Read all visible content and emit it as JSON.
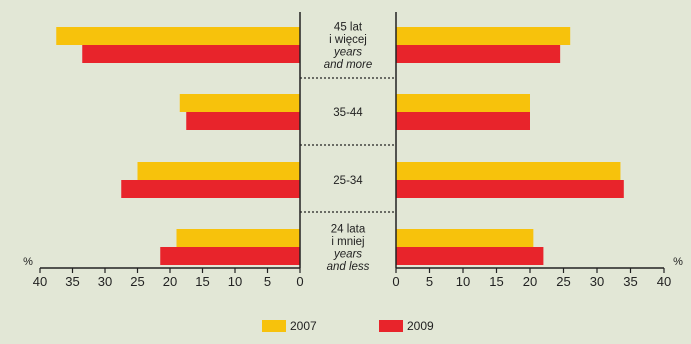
{
  "chart_data": {
    "type": "bar",
    "orientation": "horizontal-butterfly",
    "categories": [
      {
        "lines": [
          "45 lat",
          "i więcej"
        ],
        "lines_italic": [
          "years",
          "and more"
        ]
      },
      {
        "lines": [
          "35-44"
        ],
        "lines_italic": []
      },
      {
        "lines": [
          "25-34"
        ],
        "lines_italic": []
      },
      {
        "lines": [
          "24 lata",
          "i mniej"
        ],
        "lines_italic": [
          "years",
          "and less"
        ]
      }
    ],
    "panels": [
      {
        "side": "left",
        "series": [
          {
            "name": "2007",
            "color": "#f7c20c",
            "values": [
              37.5,
              18.5,
              25,
              19
            ]
          },
          {
            "name": "2009",
            "color": "#e8242b",
            "values": [
              33.5,
              17.5,
              27.5,
              21.5
            ]
          }
        ]
      },
      {
        "side": "right",
        "series": [
          {
            "name": "2007",
            "color": "#f7c20c",
            "values": [
              26,
              20,
              33.5,
              20.5
            ]
          },
          {
            "name": "2009",
            "color": "#e8242b",
            "values": [
              24.5,
              20,
              34,
              22
            ]
          }
        ]
      }
    ],
    "x_ticks": [
      0,
      5,
      10,
      15,
      20,
      25,
      30,
      35,
      40
    ],
    "xlim": [
      0,
      40
    ],
    "unit_label": "%",
    "legend": [
      {
        "name": "2007",
        "color": "#f7c20c"
      },
      {
        "name": "2009",
        "color": "#e8242b"
      }
    ],
    "legend_position": "bottom-center",
    "grid": false
  }
}
